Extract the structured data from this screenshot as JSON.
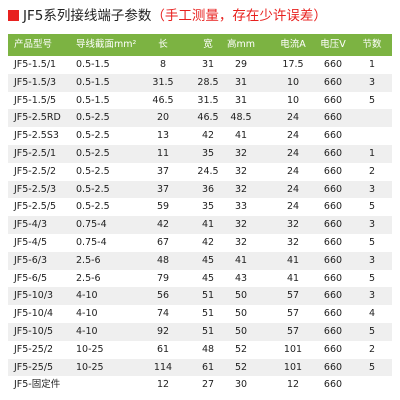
{
  "header": {
    "title": "JF5系列接线端子参数",
    "note": "（手工测量，存在少许误差）"
  },
  "table": {
    "columns": [
      "产品型号",
      "导线截面mm²",
      "长",
      "宽",
      "高mm",
      "电流A",
      "电压V",
      "节数"
    ],
    "rows": [
      [
        "JF5-1.5/1",
        "0.5-1.5",
        8,
        31,
        29,
        17.5,
        660,
        1
      ],
      [
        "JF5-1.5/3",
        "0.5-1.5",
        31.5,
        28.5,
        31,
        10,
        660,
        3
      ],
      [
        "JF5-1.5/5",
        "0.5-1.5",
        46.5,
        31.5,
        31,
        10,
        660,
        5
      ],
      [
        "JF5-2.5RD",
        "0.5-2.5",
        20,
        46.5,
        48.5,
        24,
        660,
        null
      ],
      [
        "JF5-2.5S3",
        "0.5-2.5",
        13,
        42,
        41,
        24,
        660,
        null
      ],
      [
        "JF5-2.5/1",
        "0.5-2.5",
        11,
        35,
        32,
        24,
        660,
        1
      ],
      [
        "JF5-2.5/2",
        "0.5-2.5",
        37,
        24.5,
        32,
        24,
        660,
        2
      ],
      [
        "JF5-2.5/3",
        "0.5-2.5",
        37,
        36,
        32,
        24,
        660,
        3
      ],
      [
        "JF5-2.5/5",
        "0.5-2.5",
        59,
        35,
        33,
        24,
        660,
        5
      ],
      [
        "JF5-4/3",
        "0.75-4",
        42,
        41,
        32,
        32,
        660,
        3
      ],
      [
        "JF5-4/5",
        "0.75-4",
        67,
        42,
        32,
        32,
        660,
        5
      ],
      [
        "JF5-6/3",
        "2.5-6",
        48,
        45,
        41,
        41,
        660,
        3
      ],
      [
        "JF5-6/5",
        "2.5-6",
        79,
        45,
        43,
        41,
        660,
        5
      ],
      [
        "JF5-10/3",
        "4-10",
        56,
        51,
        50,
        57,
        660,
        3
      ],
      [
        "JF5-10/4",
        "4-10",
        74,
        51,
        50,
        57,
        660,
        4
      ],
      [
        "JF5-10/5",
        "4-10",
        92,
        51,
        50,
        57,
        660,
        5
      ],
      [
        "JF5-25/2",
        "10-25",
        61,
        48,
        52,
        101,
        660,
        2
      ],
      [
        "JF5-25/5",
        "10-25",
        114,
        61,
        52,
        101,
        660,
        5
      ],
      [
        "JF5-固定件",
        null,
        12,
        27,
        30,
        12,
        660,
        null
      ]
    ]
  }
}
